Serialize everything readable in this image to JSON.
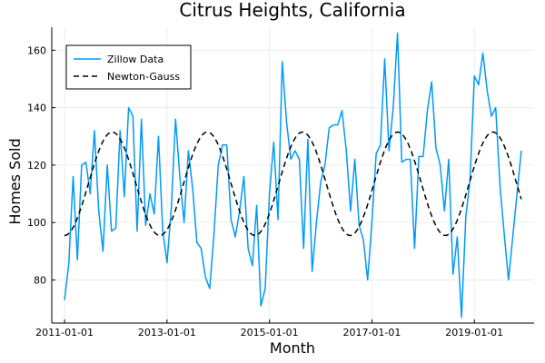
{
  "chart_data": {
    "type": "line",
    "title": "Citrus Heights, California",
    "xlabel": "Month",
    "ylabel": "Homes Sold",
    "x_ticks": [
      "2011-01-01",
      "2013-01-01",
      "2015-01-01",
      "2017-01-01",
      "2019-01-01"
    ],
    "y_ticks": [
      80,
      100,
      120,
      140,
      160
    ],
    "ylim": [
      65,
      168
    ],
    "xlim": [
      "2010-10-01",
      "2020-03-01"
    ],
    "grid": true,
    "legend": {
      "placement": "top-left"
    },
    "series": [
      {
        "name": "Zillow Data",
        "color": "#009AF9",
        "style": "solid",
        "x": [
          "2011-01",
          "2011-02",
          "2011-03",
          "2011-04",
          "2011-05",
          "2011-06",
          "2011-07",
          "2011-08",
          "2011-09",
          "2011-10",
          "2011-11",
          "2011-12",
          "2012-01",
          "2012-02",
          "2012-03",
          "2012-04",
          "2012-05",
          "2012-06",
          "2012-07",
          "2012-08",
          "2012-09",
          "2012-10",
          "2012-11",
          "2012-12",
          "2013-01",
          "2013-02",
          "2013-03",
          "2013-04",
          "2013-05",
          "2013-06",
          "2013-07",
          "2013-08",
          "2013-09",
          "2013-10",
          "2013-11",
          "2013-12",
          "2014-01",
          "2014-02",
          "2014-03",
          "2014-04",
          "2014-05",
          "2014-06",
          "2014-07",
          "2014-08",
          "2014-09",
          "2014-10",
          "2014-11",
          "2014-12",
          "2015-01",
          "2015-02",
          "2015-03",
          "2015-04",
          "2015-05",
          "2015-06",
          "2015-07",
          "2015-08",
          "2015-09",
          "2015-10",
          "2015-11",
          "2015-12",
          "2016-01",
          "2016-02",
          "2016-03",
          "2016-04",
          "2016-05",
          "2016-06",
          "2016-07",
          "2016-08",
          "2016-09",
          "2016-10",
          "2016-11",
          "2016-12",
          "2017-01",
          "2017-02",
          "2017-03",
          "2017-04",
          "2017-05",
          "2017-06",
          "2017-07",
          "2017-08",
          "2017-09",
          "2017-10",
          "2017-11",
          "2017-12",
          "2018-01",
          "2018-02",
          "2018-03",
          "2018-04",
          "2018-05",
          "2018-06",
          "2018-07",
          "2018-08",
          "2018-09",
          "2018-10",
          "2018-11",
          "2018-12",
          "2019-01",
          "2019-02",
          "2019-03",
          "2019-04",
          "2019-05",
          "2019-06",
          "2019-07",
          "2019-08",
          "2019-09",
          "2019-10",
          "2019-11",
          "2019-12"
        ],
        "y": [
          73,
          86,
          116,
          87,
          120,
          121,
          110,
          132,
          104,
          90,
          120,
          97,
          98,
          132,
          109,
          140,
          137,
          97,
          136,
          99,
          110,
          103,
          130,
          97,
          86,
          105,
          136,
          116,
          100,
          125,
          112,
          93,
          91,
          81,
          77,
          96,
          120,
          127,
          127,
          101,
          95,
          104,
          116,
          91,
          85,
          106,
          71,
          77,
          110,
          128,
          101,
          156,
          135,
          122,
          125,
          122,
          91,
          129,
          83,
          100,
          114,
          120,
          133,
          134,
          134,
          139,
          125,
          104,
          122,
          99,
          94,
          80,
          100,
          124,
          127,
          157,
          125,
          140,
          166,
          121,
          122,
          122,
          91,
          123,
          123,
          139,
          149,
          126,
          120,
          104,
          122,
          82,
          95,
          67,
          102,
          115,
          151,
          148,
          159,
          146,
          137,
          140,
          113,
          96,
          80,
          95,
          110,
          125
        ]
      },
      {
        "name": "Newton-Gauss",
        "color": "#000000",
        "style": "dashed",
        "amplitude": 18,
        "mean": 113.5,
        "period_months": 22.3,
        "x_range": [
          "2011-01-01",
          "2019-12-01"
        ],
        "approx_y_range": [
          95,
          132
        ]
      }
    ]
  }
}
